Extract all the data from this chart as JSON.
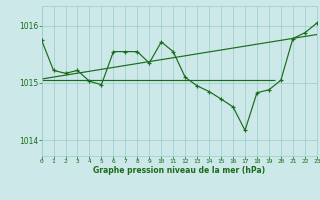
{
  "title": "Graphe pression niveau de la mer (hPa)",
  "bg_color": "#cce8e8",
  "grid_color": "#99cccc",
  "line_color": "#1a6b1a",
  "xlim": [
    0,
    23
  ],
  "ylim": [
    1013.72,
    1016.35
  ],
  "yticks": [
    1014,
    1015,
    1016
  ],
  "xticks": [
    0,
    1,
    2,
    3,
    4,
    5,
    6,
    7,
    8,
    9,
    10,
    11,
    12,
    13,
    14,
    15,
    16,
    17,
    18,
    19,
    20,
    21,
    22,
    23
  ],
  "main_x": [
    0,
    1,
    2,
    3,
    4,
    5,
    6,
    7,
    8,
    9,
    10,
    11,
    12,
    13,
    14,
    15,
    16,
    17,
    18,
    19,
    20,
    21,
    22,
    23
  ],
  "main_y": [
    1015.75,
    1015.22,
    1015.17,
    1015.22,
    1015.03,
    1014.97,
    1015.55,
    1015.55,
    1015.55,
    1015.35,
    1015.72,
    1015.55,
    1015.1,
    1014.95,
    1014.85,
    1014.72,
    1014.58,
    1014.17,
    1014.83,
    1014.88,
    1015.05,
    1015.78,
    1015.88,
    1016.05
  ],
  "trend_x": [
    0,
    23
  ],
  "trend_y": [
    1015.07,
    1015.85
  ],
  "hline_y": 1015.06,
  "hline_x0": 0,
  "hline_x1": 19.5
}
